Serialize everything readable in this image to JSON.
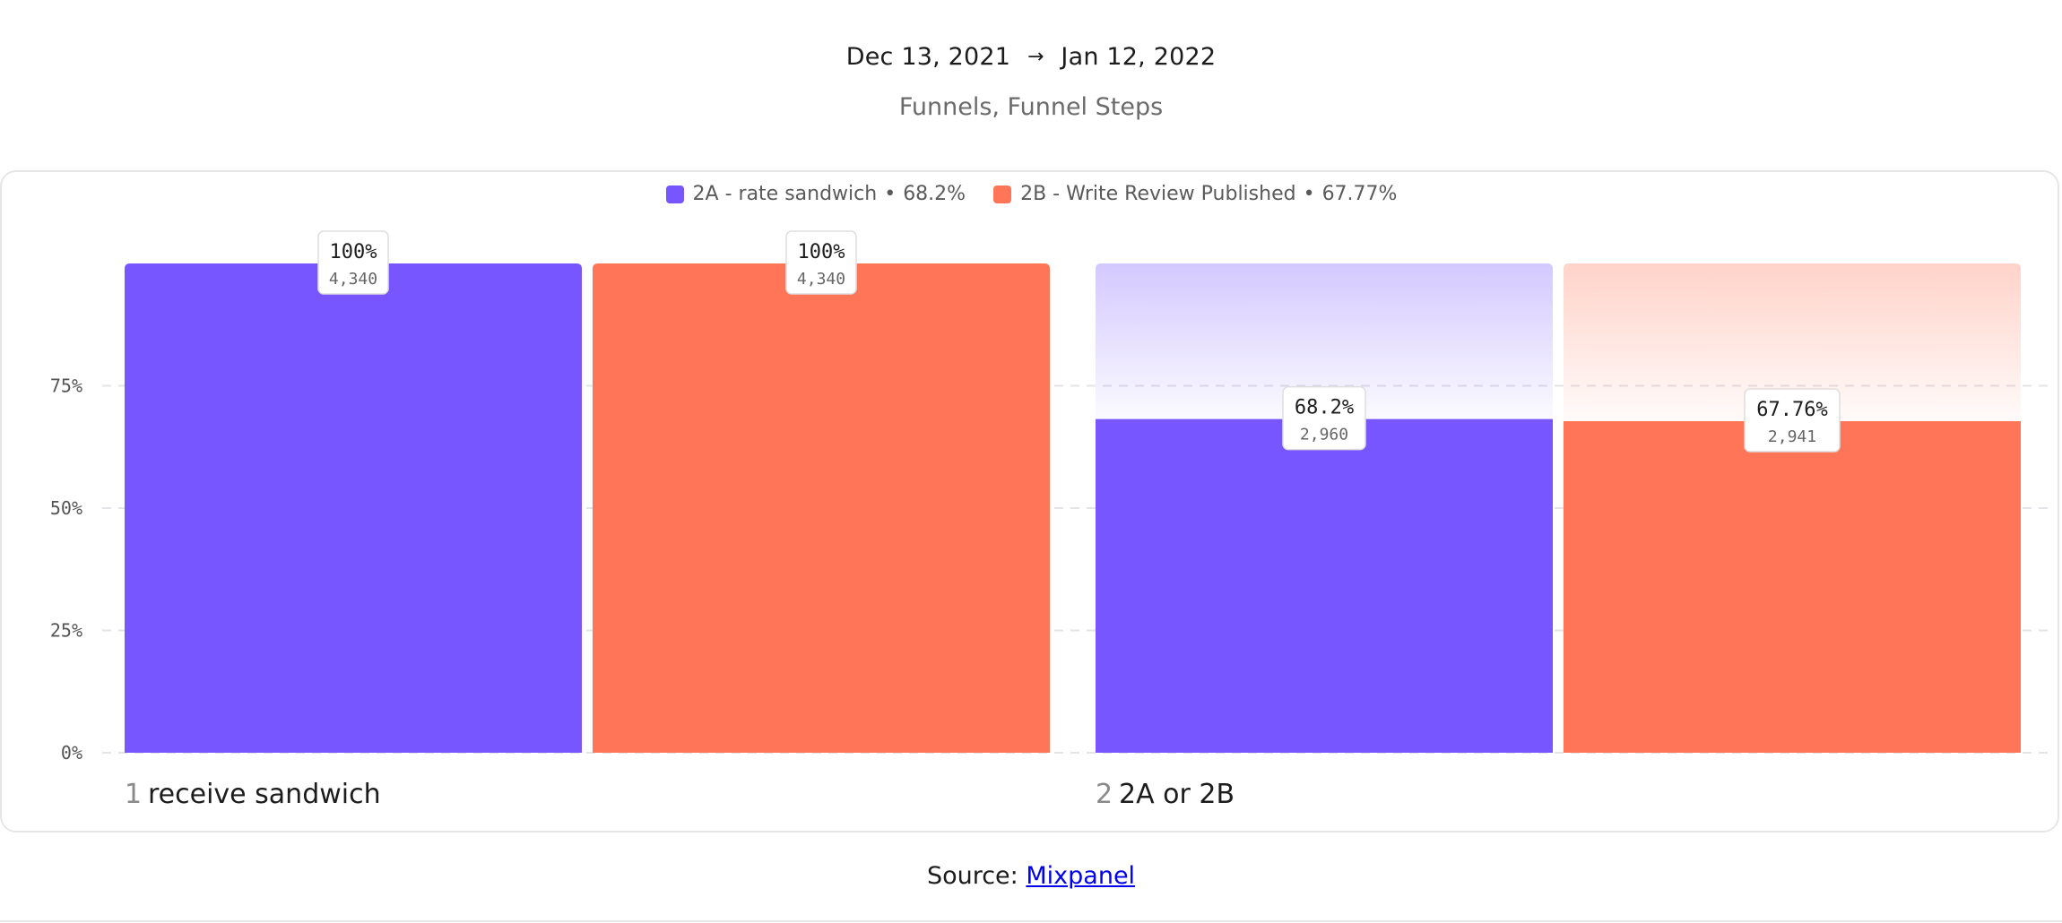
{
  "header": {
    "date_start": "Dec 13, 2021",
    "date_arrow": "→",
    "date_end": "Jan 12, 2022",
    "report_type": "Funnels, Funnel Steps"
  },
  "legend": [
    {
      "name": "2A - rate sandwich",
      "summary": "68.2%",
      "color": "#7856ff"
    },
    {
      "name": "2B - Write Review Published",
      "summary": "67.77%",
      "color": "#ff7557"
    }
  ],
  "legend_separator": "•",
  "source": {
    "prefix": "Source:",
    "link_text": "Mixpanel"
  },
  "chart_data": {
    "type": "bar",
    "categories": [
      {
        "step": "1",
        "name": "receive sandwich"
      },
      {
        "step": "2",
        "name": "2A or 2B"
      }
    ],
    "series": [
      {
        "name": "2A - rate sandwich",
        "color": "#7856ff",
        "pct_values": [
          100,
          68.2
        ],
        "pct_labels": [
          "100%",
          "68.2%"
        ],
        "counts": [
          "4,340",
          "2,960"
        ]
      },
      {
        "name": "2B - Write Review Published",
        "color": "#ff7557",
        "pct_values": [
          100,
          67.76
        ],
        "pct_labels": [
          "100%",
          "67.76%"
        ],
        "counts": [
          "4,340",
          "2,941"
        ]
      }
    ],
    "y_ticks": [
      0,
      25,
      50,
      75
    ],
    "y_tick_labels": [
      "0%",
      "25%",
      "50%",
      "75%"
    ],
    "ylim": [
      0,
      100
    ],
    "grid": true,
    "legend_position": "top-center"
  }
}
